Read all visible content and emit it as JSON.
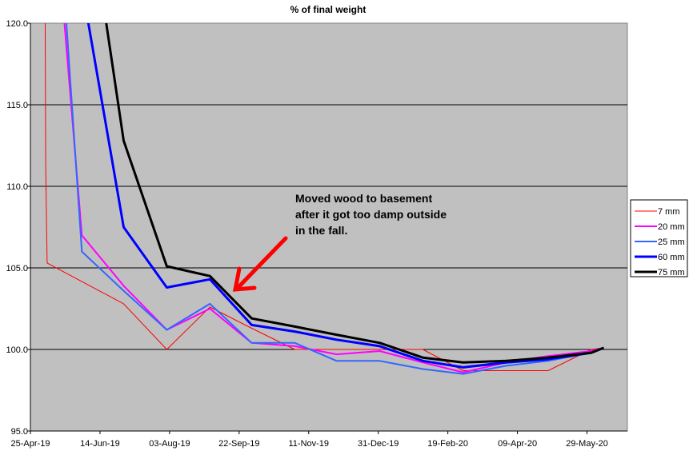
{
  "chart_data": {
    "type": "line",
    "title": "% of final weight",
    "xlabel": "",
    "ylabel": "",
    "ylim": [
      95,
      120
    ],
    "yticks": [
      "95.0",
      "100.0",
      "105.0",
      "110.0",
      "115.0",
      "120.0"
    ],
    "xlim": [
      "2019-04-25",
      "2020-06-27"
    ],
    "xticks": [
      {
        "date": "2019-04-25",
        "label": "25-Apr-19"
      },
      {
        "date": "2019-06-14",
        "label": "14-Jun-19"
      },
      {
        "date": "2019-08-03",
        "label": "03-Aug-19"
      },
      {
        "date": "2019-09-22",
        "label": "22-Sep-19"
      },
      {
        "date": "2019-11-11",
        "label": "11-Nov-19"
      },
      {
        "date": "2019-12-31",
        "label": "31-Dec-19"
      },
      {
        "date": "2020-02-19",
        "label": "19-Feb-20"
      },
      {
        "date": "2020-04-09",
        "label": "09-Apr-20"
      },
      {
        "date": "2020-05-29",
        "label": "29-May-20"
      }
    ],
    "grid": true,
    "legend_position": "right",
    "plot_background": "#c0c0c0",
    "series": [
      {
        "name": "7 mm",
        "color": "#ff0000",
        "width": 1,
        "x": [
          "2019-05-05",
          "2019-05-06",
          "2019-05-07",
          "2019-07-01",
          "2019-08-01",
          "2019-09-01",
          "2019-10-01",
          "2019-11-01",
          "2019-12-01",
          "2020-01-01",
          "2020-02-01",
          "2020-03-01",
          "2020-04-01",
          "2020-05-01",
          "2020-06-01",
          "2020-06-10"
        ],
        "y": [
          135,
          111.3,
          105.3,
          102.8,
          100.0,
          102.6,
          101.3,
          100.0,
          100.0,
          100.0,
          100.0,
          98.7,
          98.7,
          98.7,
          100.0,
          100.1
        ]
      },
      {
        "name": "20 mm",
        "color": "#ff00ff",
        "width": 2,
        "x": [
          "2019-05-05",
          "2019-06-01",
          "2019-07-01",
          "2019-08-01",
          "2019-09-01",
          "2019-10-01",
          "2019-11-01",
          "2019-12-01",
          "2020-01-01",
          "2020-02-01",
          "2020-03-01",
          "2020-04-01",
          "2020-05-01",
          "2020-06-01",
          "2020-06-10"
        ],
        "y": [
          135,
          107.0,
          103.9,
          101.2,
          102.5,
          100.4,
          100.2,
          99.7,
          99.9,
          99.2,
          98.6,
          99.2,
          99.6,
          99.9,
          100.1
        ]
      },
      {
        "name": "25 mm",
        "color": "#3366ff",
        "width": 2,
        "x": [
          "2019-05-05",
          "2019-06-01",
          "2019-07-01",
          "2019-08-01",
          "2019-09-01",
          "2019-10-01",
          "2019-11-01",
          "2019-12-01",
          "2020-01-01",
          "2020-02-01",
          "2020-03-01",
          "2020-04-01",
          "2020-05-01",
          "2020-06-01",
          "2020-06-10"
        ],
        "y": [
          140,
          106.0,
          103.6,
          101.2,
          102.8,
          100.4,
          100.4,
          99.3,
          99.3,
          98.8,
          98.5,
          99.0,
          99.3,
          99.8,
          100.1
        ]
      },
      {
        "name": "60 mm",
        "color": "#0000ff",
        "width": 3,
        "x": [
          "2019-06-01",
          "2019-07-01",
          "2019-08-01",
          "2019-09-01",
          "2019-10-01",
          "2019-11-01",
          "2019-12-01",
          "2020-01-01",
          "2020-02-01",
          "2020-03-01",
          "2020-04-01",
          "2020-05-01",
          "2020-06-01",
          "2020-06-10"
        ],
        "y": [
          122.3,
          107.5,
          103.8,
          104.3,
          101.5,
          101.1,
          100.6,
          100.2,
          99.3,
          98.9,
          99.2,
          99.4,
          99.8,
          100.1
        ]
      },
      {
        "name": "75 mm",
        "color": "#000000",
        "width": 3,
        "x": [
          "2019-06-01",
          "2019-07-01",
          "2019-08-01",
          "2019-09-01",
          "2019-10-01",
          "2019-11-01",
          "2019-12-01",
          "2020-01-01",
          "2020-02-01",
          "2020-03-01",
          "2020-04-01",
          "2020-05-01",
          "2020-06-01",
          "2020-06-10"
        ],
        "y": [
          130.1,
          112.8,
          105.1,
          104.5,
          101.9,
          101.4,
          100.9,
          100.4,
          99.5,
          99.2,
          99.3,
          99.5,
          99.8,
          100.1
        ]
      }
    ],
    "annotations": [
      {
        "lines": [
          "Moved wood to basement",
          "after it got too damp outside",
          "in the fall."
        ],
        "arrow_color": "#ff0000",
        "points_to_date": "2019-09-20",
        "points_to_value": 103.5
      }
    ]
  }
}
